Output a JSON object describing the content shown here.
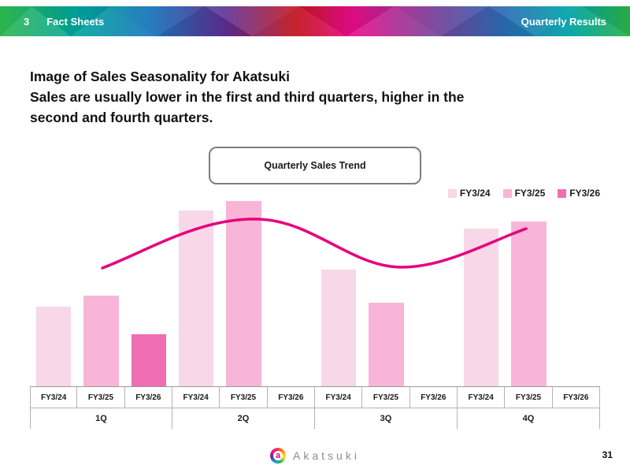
{
  "banner": {
    "left_number": "3",
    "left_title": "Fact Sheets",
    "right_title": "Quarterly Results"
  },
  "heading": {
    "line1": "Image of Sales Seasonality for Akatsuki",
    "line2": "Sales are usually lower in the first and third quarters, higher in the",
    "line3": "second and fourth quarters."
  },
  "chart_data": {
    "type": "bar",
    "title": "Quarterly Sales Trend",
    "categories": [
      "1Q",
      "2Q",
      "3Q",
      "4Q"
    ],
    "axis_labels_per_group": [
      "FY3/24",
      "FY3/25",
      "FY3/26"
    ],
    "series": [
      {
        "name": "FY3/24",
        "color": "#f8d7e8",
        "values": [
          43,
          95,
          63,
          85
        ]
      },
      {
        "name": "FY3/25",
        "color": "#f9b5d7",
        "values": [
          49,
          100,
          45,
          89
        ]
      },
      {
        "name": "FY3/26",
        "color": "#f06eb4",
        "values": [
          28,
          null,
          null,
          null
        ]
      }
    ],
    "trend_line": {
      "color": "#e6007e",
      "description": "seasonality wave: lower in 1Q and 3Q, higher in 2Q and 4Q"
    },
    "ylim": [
      0,
      105
    ],
    "grid": false,
    "legend": [
      "FY3/24",
      "FY3/25",
      "FY3/26"
    ],
    "legend_position": "top-right"
  },
  "footer": {
    "logo_letter": "a",
    "logo_text": "Akatsuki",
    "page_number": "31"
  }
}
